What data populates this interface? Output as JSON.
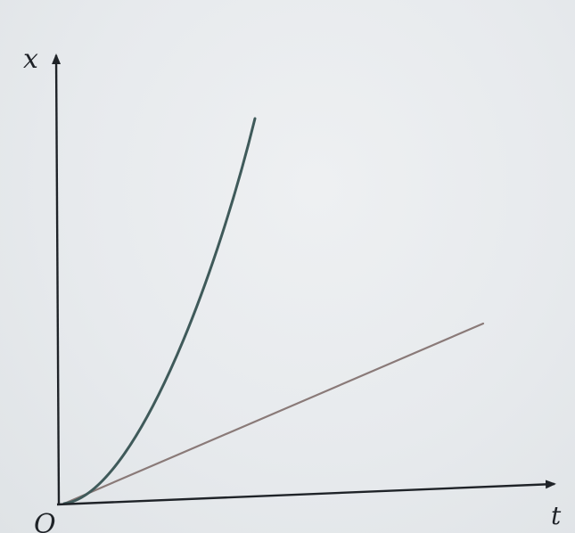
{
  "diagram": {
    "y_axis_label": "x",
    "x_axis_label": "t",
    "origin_label": "O",
    "curves": [
      {
        "kind": "parabola",
        "color": "#3f5a5a"
      },
      {
        "kind": "straight-line",
        "color": "#8a7a78"
      }
    ],
    "axis_color": "#1f2328"
  }
}
